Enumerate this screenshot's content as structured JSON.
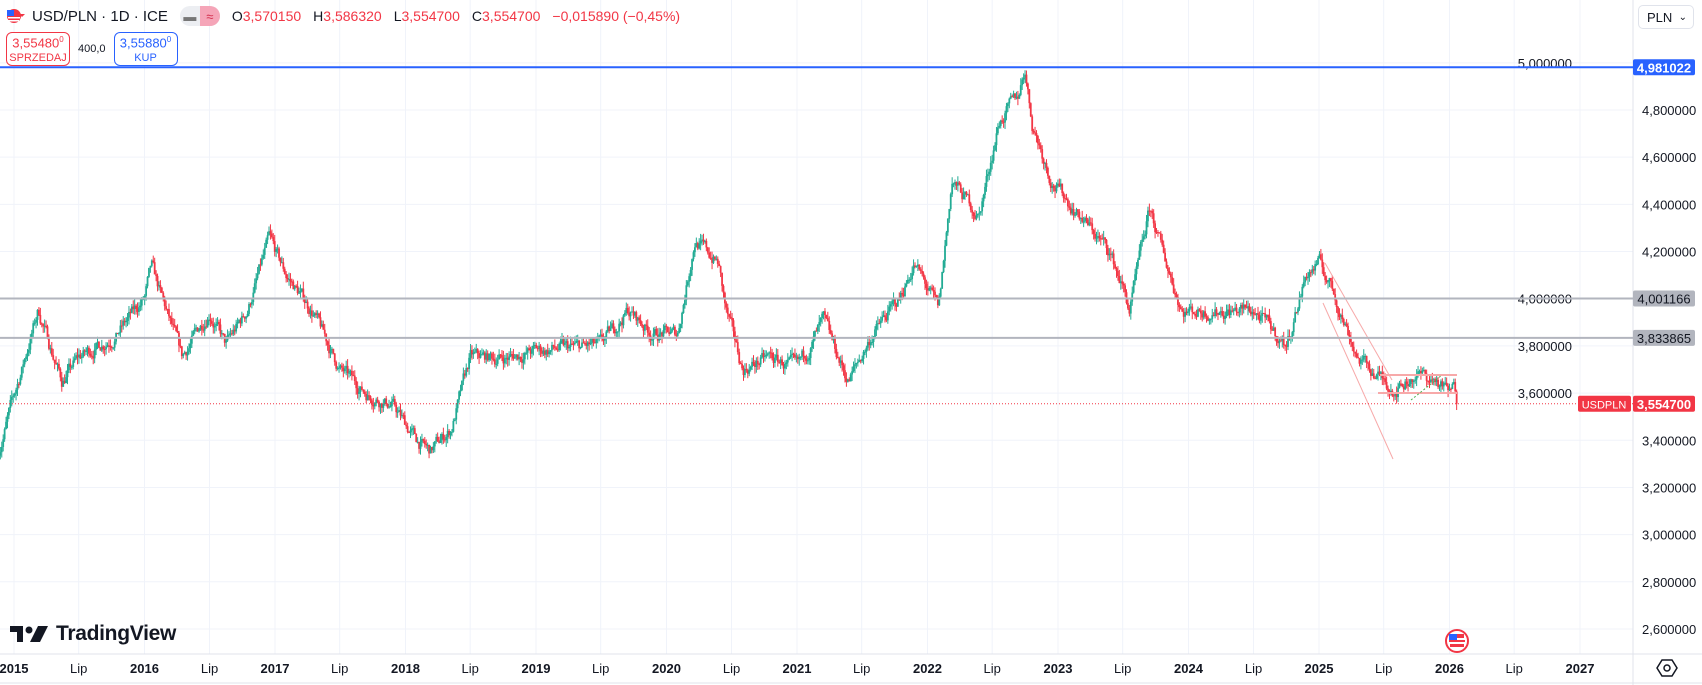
{
  "header": {
    "symbol": "USD/PLN · 1D · ICE",
    "ohlc": {
      "o_label": "O",
      "o": "3,570150",
      "h_label": "H",
      "h": "3,586320",
      "l_label": "L",
      "l": "3,554700",
      "c_label": "C",
      "c": "3,554700",
      "change": "−0,015890 (−0,45%)"
    },
    "toggle_icons": [
      "minus-icon",
      "approx-icon"
    ]
  },
  "trade": {
    "sell_price": "3,55480",
    "sell_sup": "0",
    "sell_label": "SPRZEDAJ",
    "spread": "400,0",
    "buy_price": "3,55880",
    "buy_sup": "0",
    "buy_label": "KUP"
  },
  "currency_select": "PLN",
  "logo": "TradingView",
  "colors": {
    "up": "#22ab94",
    "down": "#f23645",
    "blue_line": "#2962ff",
    "grey_line": "#b2b5be",
    "drawing": "#f7a9a9",
    "green_dotted": "#4caf50"
  },
  "chart_data": {
    "type": "candlestick",
    "symbol": "USDPLN",
    "interval": "1D",
    "y_ticks": [
      "5,000000",
      "4,800000",
      "4,600000",
      "4,400000",
      "4,200000",
      "4,000000",
      "3,800000",
      "3,600000",
      "3,400000",
      "3,200000",
      "3,000000",
      "2,800000",
      "2,600000"
    ],
    "y_tick_values": [
      5.0,
      4.8,
      4.6,
      4.4,
      4.2,
      4.0,
      3.8,
      3.6,
      3.4,
      3.2,
      3.0,
      2.8,
      2.6
    ],
    "ylim": [
      2.5,
      5.08
    ],
    "x_ticks": [
      {
        "label": "2015",
        "date": "2015-01-01"
      },
      {
        "label": "Lip",
        "date": "2015-07-01"
      },
      {
        "label": "2016",
        "date": "2016-01-01"
      },
      {
        "label": "Lip",
        "date": "2016-07-01"
      },
      {
        "label": "2017",
        "date": "2017-01-01"
      },
      {
        "label": "Lip",
        "date": "2017-07-01"
      },
      {
        "label": "2018",
        "date": "2018-01-01"
      },
      {
        "label": "Lip",
        "date": "2018-07-01"
      },
      {
        "label": "2019",
        "date": "2019-01-01"
      },
      {
        "label": "Lip",
        "date": "2019-07-01"
      },
      {
        "label": "2020",
        "date": "2020-01-01"
      },
      {
        "label": "Lip",
        "date": "2020-07-01"
      },
      {
        "label": "2021",
        "date": "2021-01-01"
      },
      {
        "label": "Lip",
        "date": "2021-07-01"
      },
      {
        "label": "2022",
        "date": "2022-01-01"
      },
      {
        "label": "Lip",
        "date": "2022-07-01"
      },
      {
        "label": "2023",
        "date": "2023-01-01"
      },
      {
        "label": "Lip",
        "date": "2023-07-01"
      },
      {
        "label": "2024",
        "date": "2024-01-01"
      },
      {
        "label": "Lip",
        "date": "2024-07-01"
      },
      {
        "label": "2025",
        "date": "2025-01-01"
      },
      {
        "label": "Lip",
        "date": "2025-07-01"
      },
      {
        "label": "2026",
        "date": "2026-01-01"
      },
      {
        "label": "Lip",
        "date": "2026-07-01"
      },
      {
        "label": "2027",
        "date": "2027-01-01"
      }
    ],
    "approx_closes": [
      [
        "2014-11-20",
        3.36
      ],
      [
        "2015-02-01",
        3.75
      ],
      [
        "2015-03-10",
        3.95
      ],
      [
        "2015-05-15",
        3.65
      ],
      [
        "2015-07-01",
        3.75
      ],
      [
        "2015-10-15",
        3.85
      ],
      [
        "2016-01-01",
        4.0
      ],
      [
        "2016-01-20",
        4.13
      ],
      [
        "2016-04-15",
        3.75
      ],
      [
        "2016-07-01",
        3.95
      ],
      [
        "2016-08-15",
        3.8
      ],
      [
        "2016-10-15",
        3.95
      ],
      [
        "2016-12-15",
        4.25
      ],
      [
        "2017-02-01",
        4.1
      ],
      [
        "2017-04-15",
        3.95
      ],
      [
        "2017-07-01",
        3.7
      ],
      [
        "2017-09-15",
        3.6
      ],
      [
        "2017-11-25",
        3.55
      ],
      [
        "2018-02-01",
        3.4
      ],
      [
        "2018-03-10",
        3.35
      ],
      [
        "2018-05-10",
        3.45
      ],
      [
        "2018-07-01",
        3.75
      ],
      [
        "2018-10-15",
        3.75
      ],
      [
        "2019-01-01",
        3.78
      ],
      [
        "2019-07-01",
        3.8
      ],
      [
        "2019-09-15",
        3.95
      ],
      [
        "2019-11-25",
        3.85
      ],
      [
        "2020-02-01",
        3.85
      ],
      [
        "2020-03-20",
        4.25
      ],
      [
        "2020-05-25",
        4.15
      ],
      [
        "2020-06-15",
        3.95
      ],
      [
        "2020-08-01",
        3.7
      ],
      [
        "2020-10-15",
        3.75
      ],
      [
        "2021-01-01",
        3.7
      ],
      [
        "2021-03-15",
        3.9
      ],
      [
        "2021-05-25",
        3.65
      ],
      [
        "2021-08-01",
        3.85
      ],
      [
        "2021-10-15",
        4.0
      ],
      [
        "2021-11-25",
        4.15
      ],
      [
        "2022-02-01",
        3.95
      ],
      [
        "2022-03-10",
        4.5
      ],
      [
        "2022-05-25",
        4.35
      ],
      [
        "2022-07-20",
        4.75
      ],
      [
        "2022-09-10",
        4.85
      ],
      [
        "2022-10-01",
        4.98
      ],
      [
        "2022-10-20",
        4.75
      ],
      [
        "2022-12-15",
        4.5
      ],
      [
        "2023-02-05",
        4.4
      ],
      [
        "2023-05-25",
        4.2
      ],
      [
        "2023-07-01",
        4.05
      ],
      [
        "2023-07-20",
        3.95
      ],
      [
        "2023-09-15",
        4.38
      ],
      [
        "2023-10-20",
        4.2
      ],
      [
        "2023-12-15",
        3.95
      ],
      [
        "2024-03-15",
        3.95
      ],
      [
        "2024-07-01",
        3.95
      ],
      [
        "2024-10-01",
        3.8
      ],
      [
        "2024-11-25",
        4.1
      ],
      [
        "2025-01-01",
        4.15
      ],
      [
        "2025-02-05",
        4.05
      ],
      [
        "2025-04-20",
        3.75
      ],
      [
        "2025-07-01",
        3.65
      ],
      [
        "2025-08-05",
        3.62
      ],
      [
        "2025-10-01",
        3.68
      ],
      [
        "2025-11-25",
        3.65
      ],
      [
        "2026-01-01",
        3.6
      ],
      [
        "2026-01-15",
        3.62
      ],
      [
        "2026-01-24",
        3.5547
      ]
    ],
    "horizontal_lines": [
      {
        "value": 4.981022,
        "label": "4,981022",
        "color": "#2962ff"
      },
      {
        "value": 4.001166,
        "label": "4,001166",
        "color": "#b2b5be"
      },
      {
        "value": 3.833865,
        "label": "3,833865",
        "color": "#b2b5be"
      }
    ],
    "last_price": {
      "value": 3.5547,
      "label": "3,554700",
      "symbol_tag": "USDPLN",
      "color": "#f23645"
    }
  }
}
